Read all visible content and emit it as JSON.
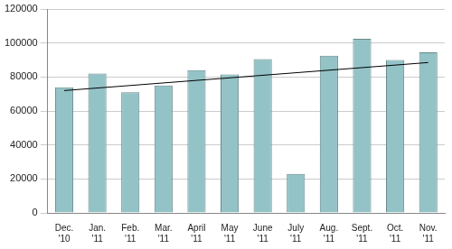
{
  "chart_data": {
    "type": "bar",
    "categories": [
      "Dec. '10",
      "Jan. '11",
      "Feb. '11",
      "Mar. '11",
      "April '11",
      "May '11",
      "June '11",
      "July '11",
      "Aug. '11",
      "Sept. '11",
      "Oct. '11",
      "Nov. '11"
    ],
    "series": [
      {
        "type": "bar",
        "color": "#93c3c6",
        "values": [
          74000,
          82000,
          71000,
          75000,
          84000,
          81500,
          90500,
          23000,
          92500,
          102500,
          90000,
          94500
        ]
      },
      {
        "type": "line",
        "color": "#000000",
        "marker": "none",
        "line_style": "solid",
        "values": [
          72000,
          null,
          null,
          null,
          null,
          null,
          null,
          null,
          null,
          null,
          null,
          88500
        ]
      }
    ],
    "ylim": [
      0,
      120000
    ],
    "yticks": [
      0,
      20000,
      40000,
      60000,
      80000,
      100000,
      120000
    ],
    "grid": true
  }
}
